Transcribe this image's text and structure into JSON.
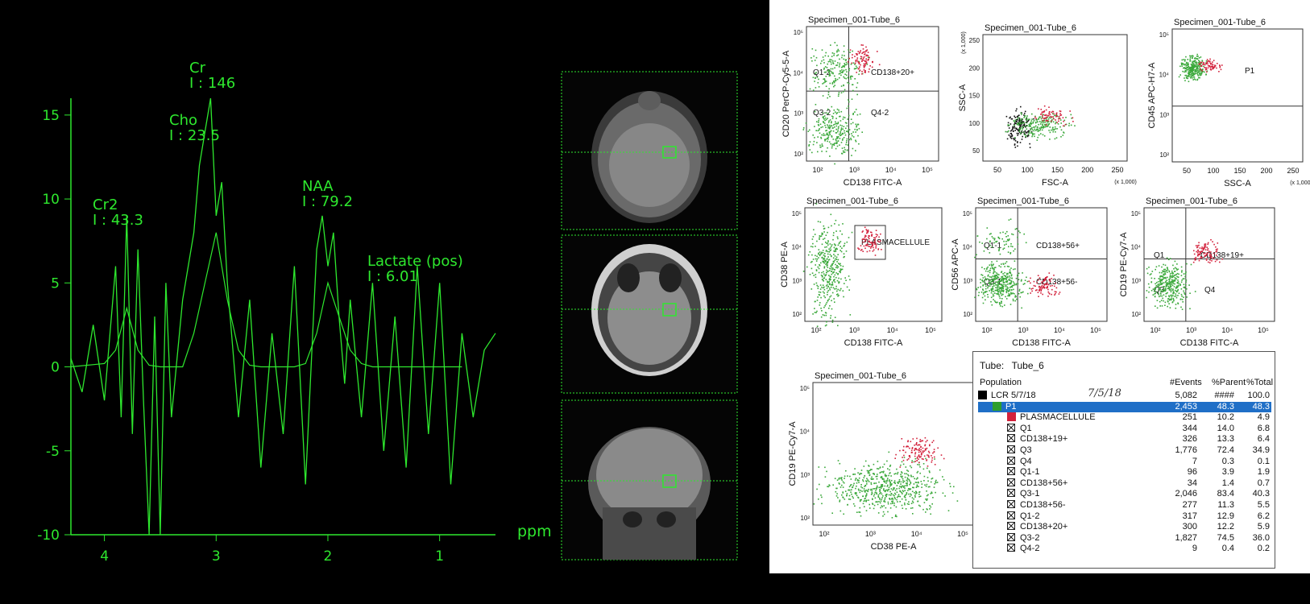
{
  "chart_data": [
    {
      "type": "line",
      "xlabel": "ppm",
      "ylabel": "",
      "xlim": [
        4.3,
        0.5
      ],
      "ylim": [
        -10,
        16
      ],
      "x_ticks": [
        "4",
        "3",
        "2",
        "1"
      ],
      "y_ticks": [
        "15",
        "10",
        "5",
        "0",
        "-5",
        "-10"
      ],
      "series": [
        {
          "values_x": [
            4.3,
            4.2,
            4.1,
            4.0,
            3.9,
            3.85,
            3.8,
            3.75,
            3.7,
            3.65,
            3.6,
            3.55,
            3.5,
            3.45,
            3.4,
            3.3,
            3.2,
            3.15,
            3.1,
            3.05,
            3.0,
            2.95,
            2.9,
            2.85,
            2.8,
            2.7,
            2.6,
            2.5,
            2.4,
            2.3,
            2.2,
            2.1,
            2.05,
            2.0,
            1.95,
            1.9,
            1.85,
            1.8,
            1.7,
            1.6,
            1.5,
            1.4,
            1.3,
            1.2,
            1.1,
            1.0,
            0.9,
            0.8,
            0.7,
            0.6,
            0.5
          ],
          "values_y": [
            0.5,
            -1.5,
            2.5,
            -2,
            6,
            -3,
            9,
            -4,
            7,
            -2,
            -10,
            3,
            -10,
            5,
            -3,
            4,
            8,
            12,
            14,
            16,
            9,
            11,
            5,
            1,
            -3,
            4,
            -6,
            2,
            -4,
            6,
            -7,
            7,
            9,
            6,
            8,
            3,
            -1,
            4,
            -3,
            5,
            -5,
            3,
            -6,
            6,
            -4,
            5,
            -7,
            2,
            -3,
            1,
            2
          ]
        },
        {
          "values_x": [
            4.3,
            4.0,
            3.9,
            3.8,
            3.7,
            3.6,
            3.5,
            3.4,
            3.3,
            3.2,
            3.1,
            3.0,
            2.9,
            2.8,
            2.7,
            2.6,
            2.5,
            2.4,
            2.3,
            2.2,
            2.1,
            2.0,
            1.9,
            1.8,
            1.7,
            1.6,
            1.5,
            1.4,
            1.3,
            1.2,
            1.1,
            1.0,
            0.9,
            0.8
          ],
          "values_y": [
            0,
            0.2,
            1,
            3.5,
            1,
            0.1,
            0,
            0,
            0,
            2,
            5,
            8,
            4,
            1,
            0.1,
            0,
            0,
            0,
            0,
            0.2,
            2,
            5,
            3,
            1,
            0.2,
            0,
            0,
            0,
            0,
            0,
            0,
            0,
            0,
            0
          ]
        }
      ],
      "annotations": [
        {
          "name": "Cr",
          "value": "I : 146",
          "x": 3.0
        },
        {
          "name": "Cho",
          "value": "I : 23.5",
          "x": 3.2
        },
        {
          "name": "Cr2",
          "value": "I : 43.3",
          "x": 3.9
        },
        {
          "name": "NAA",
          "value": "I : 79.2",
          "x": 2.0
        },
        {
          "name": "Lactate (pos)",
          "value": "I : 6.01",
          "x": 1.4
        }
      ]
    },
    {
      "type": "scatter",
      "plots": [
        {
          "title": "Specimen_001-Tube_6",
          "xlabel": "CD138 FITC-A",
          "ylabel": "CD20 PerCP-Cy5-5-A",
          "gates": [
            "Q1-2",
            "CD138+20+",
            "Q3-2",
            "Q4-2"
          ]
        },
        {
          "title": "Specimen_001-Tube_6",
          "xlabel": "FSC-A",
          "ylabel": "SSC-A",
          "x_unit": "(x 1,000)",
          "y_unit": "(x 1,000)",
          "x_ticks": [
            "50",
            "100",
            "150",
            "200",
            "250"
          ],
          "y_ticks": [
            "50",
            "100",
            "150",
            "200",
            "250"
          ]
        },
        {
          "title": "Specimen_001-Tube_6",
          "xlabel": "SSC-A",
          "ylabel": "CD45 APC-H7-A",
          "x_unit": "(x 1,000)",
          "x_ticks": [
            "50",
            "100",
            "150",
            "200",
            "250"
          ],
          "gates": [
            "P1"
          ]
        },
        {
          "title": "Specimen_001-Tube_6",
          "xlabel": "CD138 FITC-A",
          "ylabel": "CD38 PE-A",
          "gates": [
            "PLASMACELLULE"
          ]
        },
        {
          "title": "Specimen_001-Tube_6",
          "xlabel": "CD138 FITC-A",
          "ylabel": "CD56 APC-A",
          "gates": [
            "Q1-1",
            "CD138+56+",
            "Q3-1",
            "CD138+56-"
          ]
        },
        {
          "title": "Specimen_001-Tube_6",
          "xlabel": "CD138 FITC-A",
          "ylabel": "CD19 PE-Cy7-A",
          "gates": [
            "Q1",
            "CD138+19+",
            "Q3",
            "Q4"
          ]
        },
        {
          "title": "Specimen_001-Tube_6",
          "xlabel": "CD38 PE-A",
          "ylabel": "CD19 PE-Cy7-A"
        }
      ],
      "log_ticks": [
        "10²",
        "10³",
        "10⁴",
        "10⁵"
      ]
    },
    {
      "type": "table",
      "tube_label": "Tube:",
      "tube_value": "Tube_6",
      "handwriting": "7/5/18",
      "columns": [
        "Population",
        "#Events",
        "%Parent",
        "%Total"
      ],
      "rows": [
        {
          "name": "LCR 5/7/18",
          "events": "5,082",
          "parent": "####",
          "total": "100.0",
          "level": 0,
          "marker": "#000000"
        },
        {
          "name": "P1",
          "events": "2,453",
          "parent": "48.3",
          "total": "48.3",
          "level": 1,
          "marker": "#2e9e2e"
        },
        {
          "name": "PLASMACELLULE",
          "events": "251",
          "parent": "10.2",
          "total": "4.9",
          "level": 2,
          "marker": "#d3223c"
        },
        {
          "name": "Q1",
          "events": "344",
          "parent": "14.0",
          "total": "6.8",
          "level": 2,
          "marker": "x"
        },
        {
          "name": "CD138+19+",
          "events": "326",
          "parent": "13.3",
          "total": "6.4",
          "level": 2,
          "marker": "x"
        },
        {
          "name": "Q3",
          "events": "1,776",
          "parent": "72.4",
          "total": "34.9",
          "level": 2,
          "marker": "x"
        },
        {
          "name": "Q4",
          "events": "7",
          "parent": "0.3",
          "total": "0.1",
          "level": 2,
          "marker": "x"
        },
        {
          "name": "Q1-1",
          "events": "96",
          "parent": "3.9",
          "total": "1.9",
          "level": 2,
          "marker": "x"
        },
        {
          "name": "CD138+56+",
          "events": "34",
          "parent": "1.4",
          "total": "0.7",
          "level": 2,
          "marker": "x"
        },
        {
          "name": "Q3-1",
          "events": "2,046",
          "parent": "83.4",
          "total": "40.3",
          "level": 2,
          "marker": "x"
        },
        {
          "name": "CD138+56-",
          "events": "277",
          "parent": "11.3",
          "total": "5.5",
          "level": 2,
          "marker": "x"
        },
        {
          "name": "Q1-2",
          "events": "317",
          "parent": "12.9",
          "total": "6.2",
          "level": 2,
          "marker": "x"
        },
        {
          "name": "CD138+20+",
          "events": "300",
          "parent": "12.2",
          "total": "5.9",
          "level": 2,
          "marker": "x"
        },
        {
          "name": "Q3-2",
          "events": "1,827",
          "parent": "74.5",
          "total": "36.0",
          "level": 2,
          "marker": "x"
        },
        {
          "name": "Q4-2",
          "events": "9",
          "parent": "0.4",
          "total": "0.2",
          "level": 2,
          "marker": "x"
        }
      ]
    }
  ],
  "colors": {
    "spectrum": "#2ee82e",
    "gated_cells": "#d3223c",
    "p1_cells": "#3aa83a",
    "ungated_cells": "#111111",
    "selection": "#1f6fc7"
  }
}
